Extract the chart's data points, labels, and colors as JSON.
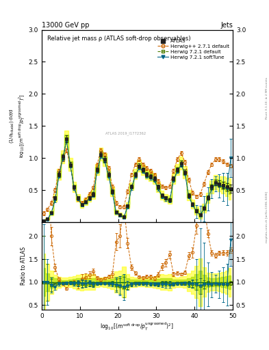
{
  "title_top": "13000 GeV pp",
  "title_right": "Jets",
  "plot_title": "Relative jet mass ρ (ATLAS soft-drop observables)",
  "watermark": "ATLAS 2019_I1772362",
  "right_label": "Rivet 3.1.10; ≥ 2.9M events",
  "right_label2": "mcplots.cern.ch [arXiv:1306.3436]",
  "x_values": [
    0.5,
    1.5,
    2.5,
    3.5,
    4.5,
    5.5,
    6.5,
    7.5,
    8.5,
    9.5,
    10.5,
    11.5,
    12.5,
    13.5,
    14.5,
    15.5,
    16.5,
    17.5,
    18.5,
    19.5,
    20.5,
    21.5,
    22.5,
    23.5,
    24.5,
    25.5,
    26.5,
    27.5,
    28.5,
    29.5,
    30.5,
    31.5,
    32.5,
    33.5,
    34.5,
    35.5,
    36.5,
    37.5,
    38.5,
    39.5,
    40.5,
    41.5,
    42.5,
    43.5,
    44.5,
    45.5,
    46.5,
    47.5,
    48.5,
    49.5
  ],
  "atlas_y": [
    0.02,
    0.05,
    0.15,
    0.38,
    0.75,
    1.02,
    1.3,
    0.9,
    0.55,
    0.38,
    0.28,
    0.32,
    0.38,
    0.44,
    0.82,
    1.06,
    0.98,
    0.75,
    0.48,
    0.16,
    0.12,
    0.09,
    0.26,
    0.56,
    0.75,
    0.88,
    0.82,
    0.75,
    0.72,
    0.68,
    0.55,
    0.42,
    0.38,
    0.35,
    0.68,
    0.82,
    0.92,
    0.78,
    0.42,
    0.28,
    0.18,
    0.12,
    0.22,
    0.38,
    0.55,
    0.62,
    0.6,
    0.58,
    0.55,
    0.52
  ],
  "atlas_yerr": [
    0.005,
    0.008,
    0.015,
    0.025,
    0.035,
    0.04,
    0.05,
    0.04,
    0.03,
    0.025,
    0.02,
    0.022,
    0.025,
    0.03,
    0.035,
    0.04,
    0.04,
    0.035,
    0.03,
    0.015,
    0.012,
    0.012,
    0.018,
    0.025,
    0.032,
    0.035,
    0.032,
    0.032,
    0.032,
    0.032,
    0.032,
    0.028,
    0.025,
    0.025,
    0.032,
    0.035,
    0.04,
    0.038,
    0.032,
    0.028,
    0.025,
    0.025,
    0.028,
    0.032,
    0.04,
    0.045,
    0.048,
    0.052,
    0.056,
    0.065
  ],
  "hpp_y": [
    0.14,
    0.2,
    0.3,
    0.5,
    0.8,
    0.98,
    1.12,
    0.88,
    0.54,
    0.36,
    0.3,
    0.35,
    0.44,
    0.54,
    0.9,
    1.12,
    1.06,
    0.84,
    0.56,
    0.3,
    0.24,
    0.24,
    0.48,
    0.74,
    0.9,
    0.98,
    0.9,
    0.84,
    0.8,
    0.74,
    0.64,
    0.56,
    0.54,
    0.56,
    0.8,
    0.98,
    1.08,
    0.94,
    0.66,
    0.46,
    0.4,
    0.44,
    0.6,
    0.78,
    0.9,
    0.98,
    0.98,
    0.95,
    0.9,
    0.88
  ],
  "hpp_yerr": [
    0.03,
    0.03,
    0.03,
    0.03,
    0.03,
    0.03,
    0.03,
    0.03,
    0.03,
    0.03,
    0.03,
    0.03,
    0.03,
    0.03,
    0.03,
    0.03,
    0.03,
    0.03,
    0.03,
    0.03,
    0.03,
    0.03,
    0.03,
    0.03,
    0.03,
    0.03,
    0.03,
    0.03,
    0.03,
    0.03,
    0.03,
    0.03,
    0.03,
    0.03,
    0.03,
    0.03,
    0.03,
    0.03,
    0.03,
    0.03,
    0.03,
    0.03,
    0.03,
    0.03,
    0.03,
    0.03,
    0.03,
    0.03,
    0.03,
    0.03
  ],
  "h721d_y": [
    0.02,
    0.05,
    0.14,
    0.36,
    0.73,
    1.0,
    1.28,
    0.89,
    0.54,
    0.37,
    0.27,
    0.31,
    0.37,
    0.42,
    0.8,
    1.04,
    0.96,
    0.73,
    0.47,
    0.15,
    0.11,
    0.08,
    0.24,
    0.54,
    0.73,
    0.86,
    0.8,
    0.73,
    0.7,
    0.66,
    0.53,
    0.41,
    0.37,
    0.34,
    0.66,
    0.8,
    0.9,
    0.77,
    0.41,
    0.27,
    0.17,
    0.11,
    0.21,
    0.37,
    0.53,
    0.6,
    0.58,
    0.56,
    0.53,
    0.51
  ],
  "h721d_yerr": [
    0.02,
    0.02,
    0.02,
    0.02,
    0.02,
    0.02,
    0.02,
    0.02,
    0.02,
    0.02,
    0.02,
    0.02,
    0.02,
    0.02,
    0.02,
    0.02,
    0.02,
    0.02,
    0.02,
    0.02,
    0.02,
    0.02,
    0.02,
    0.02,
    0.02,
    0.02,
    0.02,
    0.02,
    0.02,
    0.02,
    0.02,
    0.02,
    0.02,
    0.02,
    0.02,
    0.02,
    0.02,
    0.02,
    0.02,
    0.02,
    0.02,
    0.02,
    0.02,
    0.02,
    0.02,
    0.02,
    0.02,
    0.02,
    0.02,
    0.02
  ],
  "h721s_y": [
    0.02,
    0.05,
    0.14,
    0.34,
    0.72,
    0.99,
    1.27,
    0.88,
    0.53,
    0.37,
    0.27,
    0.31,
    0.37,
    0.42,
    0.79,
    1.03,
    0.95,
    0.72,
    0.46,
    0.15,
    0.11,
    0.08,
    0.24,
    0.53,
    0.72,
    0.85,
    0.79,
    0.72,
    0.69,
    0.65,
    0.52,
    0.4,
    0.36,
    0.33,
    0.65,
    0.79,
    0.89,
    0.76,
    0.4,
    0.27,
    0.17,
    0.11,
    0.21,
    0.36,
    0.52,
    0.6,
    0.57,
    0.55,
    0.52,
    1.0
  ],
  "h721s_yerr": [
    0.025,
    0.025,
    0.025,
    0.025,
    0.025,
    0.025,
    0.025,
    0.025,
    0.025,
    0.025,
    0.025,
    0.025,
    0.025,
    0.025,
    0.025,
    0.025,
    0.025,
    0.025,
    0.025,
    0.025,
    0.025,
    0.025,
    0.025,
    0.025,
    0.025,
    0.025,
    0.025,
    0.025,
    0.025,
    0.025,
    0.025,
    0.025,
    0.025,
    0.025,
    0.025,
    0.025,
    0.025,
    0.025,
    0.025,
    0.025,
    0.1,
    0.15,
    0.2,
    0.18,
    0.15,
    0.12,
    0.18,
    0.22,
    0.25,
    0.3
  ],
  "atlas_color": "#222222",
  "hpp_color": "#cc6600",
  "h721d_color": "#4a7c00",
  "h721s_color": "#006688",
  "yellow_color": "#ffff00",
  "green_color": "#aadd00",
  "ylim_main": [
    0.0,
    3.0
  ],
  "ylim_ratio": [
    0.4,
    2.3
  ],
  "xlim": [
    0,
    50
  ],
  "xticks": [
    0,
    10,
    20,
    30,
    40,
    50
  ],
  "yticks_main": [
    0.5,
    1.0,
    1.5,
    2.0,
    2.5,
    3.0
  ],
  "yticks_ratio": [
    0.5,
    1.0,
    1.5,
    2.0
  ]
}
